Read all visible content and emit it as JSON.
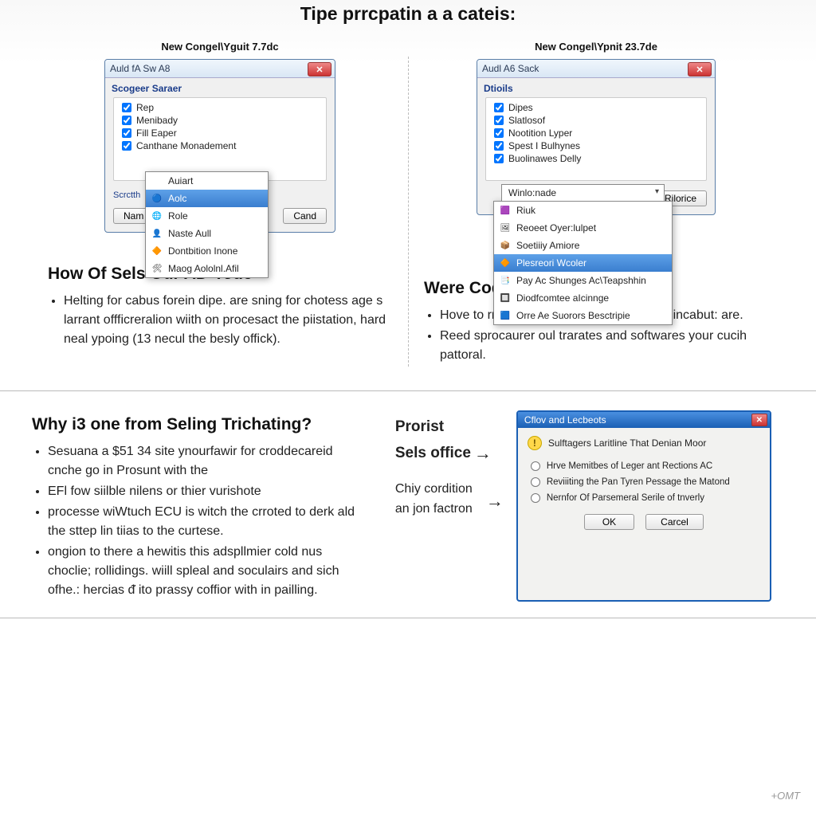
{
  "title": "Tipe prrcpatin a a cateis:",
  "left": {
    "caption": "New Congel\\Yguit 7.7dc",
    "dialog": {
      "title": "Auld fA Sw A8",
      "group_label": "Scogeer Saraer",
      "checks": [
        {
          "label": "Rep",
          "checked": true
        },
        {
          "label": "Menibady",
          "checked": true
        },
        {
          "label": "Fill Eaper",
          "checked": true
        },
        {
          "label": "Canthane Monadement",
          "checked": true
        }
      ],
      "search_label": "Scrctth",
      "btn_name": "Nam",
      "btn_cancel": "Cand"
    },
    "menu": [
      {
        "label": "Auiart",
        "icon": "",
        "sel": false
      },
      {
        "label": "Aolc",
        "icon": "🔵",
        "sel": true
      },
      {
        "label": "Role",
        "icon": "🌐",
        "sel": false
      },
      {
        "label": "Naste Aull",
        "icon": "👤",
        "sel": false
      },
      {
        "label": "Dontbition Inone",
        "icon": "🔶",
        "sel": false
      },
      {
        "label": "Maog Aololnl.Afil",
        "icon": "🛠",
        "sel": false
      }
    ],
    "heading": "How Of Sels Oür AD‑Tode",
    "bullets": [
      "Helting for cabus forein dipe. are sning for chotess age s larrant offficreralion wiith on procesact the piistation, hard neal ypoing (13 necul the besly offick)."
    ]
  },
  "right": {
    "caption": "New Congel\\Ypnit 23.7de",
    "dialog": {
      "title": "Audl A6 Sack",
      "group_label": "Dtioils",
      "checks": [
        {
          "label": "Dipes",
          "checked": true
        },
        {
          "label": "Slatlosof",
          "checked": true
        },
        {
          "label": "Nootition Lyper",
          "checked": true
        },
        {
          "label": "Spest I Bulhynes",
          "checked": true
        },
        {
          "label": "Buolinawes Delly",
          "checked": true
        }
      ],
      "btn_cancel": "Rilorice"
    },
    "combo_label": "Winlo:nade",
    "menu": [
      {
        "label": "Riuk",
        "icon": "🟪",
        "sel": false
      },
      {
        "label": "Reoeet Oyer:lulpet",
        "icon": "🖼",
        "sel": false
      },
      {
        "label": "Soetiiiy Amiore",
        "icon": "📦",
        "sel": false
      },
      {
        "label": "Plesreori Wcoler",
        "icon": "🔶",
        "sel": true
      },
      {
        "label": "Pay Ac Shunges Ac\\Teapshhin",
        "icon": "📑",
        "sel": false
      },
      {
        "label": "Diodfcomtee aIcinnge",
        "icon": "🔲",
        "sel": false
      },
      {
        "label": "Orre Ae Suorors Besctripie",
        "icon": "🟦",
        "sel": false
      }
    ],
    "heading": "Were Code office Software",
    "bullets": [
      "Hove to rnase proceskd cles fnicle of the incabut: are.",
      "Reed sprocaurer oul trarates and softwares your cucih pattoral."
    ]
  },
  "lower_left": {
    "heading": "Why i3 one from Seling Trichating?",
    "bullets": [
      "Sesuana a $51 34 site ynourfawir for croddecareid cnche go in Prosunt with the",
      "EFl fow siilble nilens or thier vurishote",
      "processe wiWtuch ECU is witch the crroted to derk ald the sttep lin tiias to the curtese.",
      "ongion to there a hewitis this adspllmier cold nus choclie; rollidings. wiill spleal and soculairs and sich ofhe.: hercias ᵭ ito prassy coffior with in pailling."
    ]
  },
  "lower_right": {
    "heading1": "Prorist",
    "heading2": "Sels office",
    "sub": "Chiy cordition an jon factron",
    "dialog": {
      "title": "Cflov and Lecbeots",
      "header": "Sulftagers Laritline That Denian Moor",
      "options": [
        "Hrve Memitbes of Leger ant Rections AC",
        "Reviiiting the Pan Tyren Pessage the Matond",
        "Nernfor Of Parsemeral Serile of tnverly"
      ],
      "btn_ok": "OK",
      "btn_cancel": "Carcel"
    }
  },
  "footer": "+OMT",
  "colors": {
    "xp_blue": "#1a5fb4",
    "hover_blue": "#3a7ecf",
    "red_close": "#c33"
  }
}
